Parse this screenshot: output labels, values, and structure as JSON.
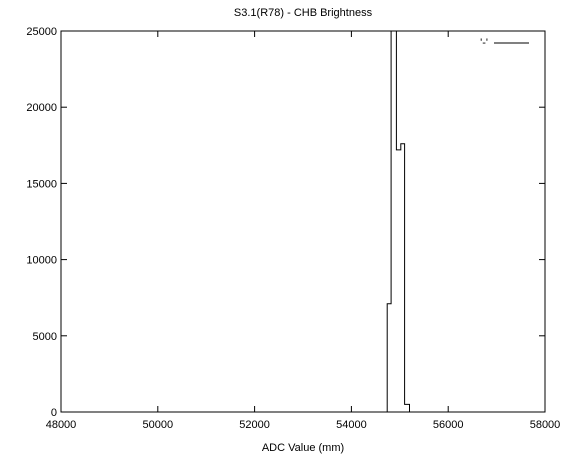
{
  "chart_data": {
    "type": "line",
    "title": "S3.1(R78) - CHB Brightness",
    "xlabel": "ADC Value (mm)",
    "ylabel": "",
    "xlim": [
      48000,
      58000
    ],
    "ylim": [
      0,
      25000
    ],
    "x_ticks": [
      48000,
      50000,
      52000,
      54000,
      56000,
      58000
    ],
    "y_ticks": [
      0,
      5000,
      10000,
      15000,
      20000,
      25000
    ],
    "x_tick_labels": [
      "48000",
      "50000",
      "52000",
      "54000",
      "56000",
      "58000"
    ],
    "y_tick_labels": [
      "0",
      "5000",
      "10000",
      "15000",
      "20000",
      "25000"
    ],
    "legend_position": "top-right",
    "grid": false,
    "series": [
      {
        "name": "'-'",
        "color": "#000000",
        "style": "histogram-steps",
        "x": [
          47950,
          54740,
          54740,
          54820,
          54820,
          54930,
          54930,
          55020,
          55020,
          55100,
          55100,
          55200,
          55200,
          58000
        ],
        "y": [
          0,
          0,
          7100,
          7100,
          25000,
          25000,
          17200,
          17200,
          17600,
          17600,
          500,
          500,
          0,
          0
        ]
      }
    ]
  }
}
